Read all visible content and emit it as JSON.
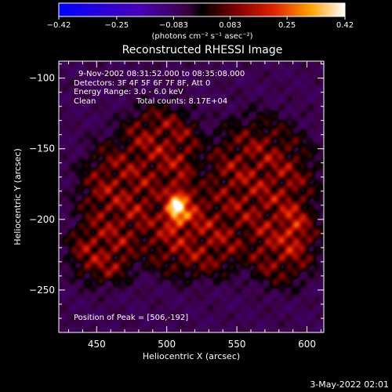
{
  "chart_data": {
    "type": "heatmap",
    "title": "Reconstructed RHESSI Image",
    "xlabel": "Heliocentric X (arcsec)",
    "ylabel": "Heliocentric Y (arcsec)",
    "xlim": [
      423,
      612
    ],
    "ylim": [
      -280,
      -88
    ],
    "x_ticks": [
      450,
      500,
      550,
      600
    ],
    "y_ticks": [
      -100,
      -150,
      -200,
      -250
    ],
    "x_tick_labels": [
      "450",
      "500",
      "550",
      "600"
    ],
    "y_tick_labels": [
      "−100",
      "−150",
      "−200",
      "−250"
    ],
    "colorbar": {
      "min": -0.42,
      "max": 0.42,
      "tick_values": [
        -0.42,
        -0.25,
        -0.083,
        0.083,
        0.25,
        0.42
      ],
      "tick_labels": [
        "−0.42",
        "−0.25",
        "−0.083",
        "0.083",
        "0.25",
        "0.42"
      ],
      "unit_text": "(photons cm⁻² s⁻¹ asec⁻²)"
    },
    "annotations": {
      "time_range": "9-Nov-2002 08:31:52.000 to 08:35:08.000",
      "detectors": "Detectors: 3F 4F 5F 6F 7F 8F, Att 0",
      "energy": "Energy Range: 3.0 - 6.0 keV",
      "method": "Clean",
      "counts": "Total counts: 8.17E+04",
      "peak": "Position of Peak = [506,-192]"
    },
    "peak": {
      "x": 506,
      "y": -192,
      "value": 0.42
    },
    "sources": [
      {
        "x": 512,
        "y": -185,
        "sx": 8,
        "sy": 12,
        "amp": 0.12
      },
      {
        "x": 506,
        "y": -192,
        "sx": 5,
        "sy": 8,
        "amp": 0.27
      },
      {
        "x": 590,
        "y": -205,
        "sx": 6,
        "sy": 12,
        "amp": 0.08
      }
    ],
    "datestamp": "3-May-2022 02:01"
  }
}
